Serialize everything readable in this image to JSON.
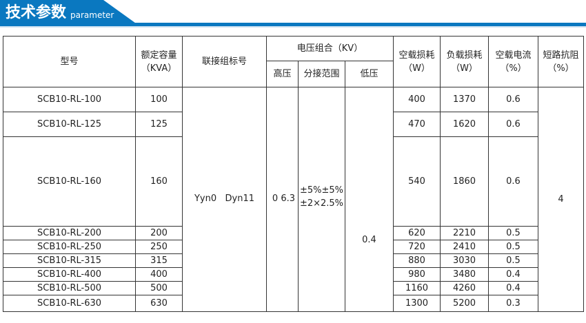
{
  "header": {
    "title": "技术参数",
    "subtitle": "parameter",
    "accent": "#0a78c0"
  },
  "table": {
    "headers": {
      "model": "型号",
      "capacity": "额定容量",
      "capacity_unit": "（KVA）",
      "connection": "联接组标号",
      "voltage": "电压组合（KV）",
      "hv": "高压",
      "tap": "分接范围",
      "lv": "低压",
      "noload_loss": "空载损耗",
      "noload_loss_unit": "（W）",
      "load_loss": "负载损耗",
      "load_loss_unit": "（W）",
      "noload_current": "空载电流",
      "noload_current_unit": "（%）",
      "impedance": "短路抗阻",
      "impedance_unit": "（%）"
    },
    "shared": {
      "connection": "Yyn0   Dyn11",
      "hv": "0  6.3",
      "tap1": "±5%±5%",
      "tap2": "±2×2.5%",
      "lv": "0.4",
      "impedance": "4"
    },
    "rows": [
      {
        "model": "SCB10-RL-100",
        "capacity": "100",
        "noload_loss": "400",
        "load_loss": "1370",
        "current": "0.6"
      },
      {
        "model": "SCB10-RL-125",
        "capacity": "125",
        "noload_loss": "470",
        "load_loss": "1620",
        "current": "0.6"
      },
      {
        "model": "SCB10-RL-160",
        "capacity": "160",
        "noload_loss": "540",
        "load_loss": "1860",
        "current": "0.6"
      },
      {
        "model": "SCB10-RL-200",
        "capacity": "200",
        "noload_loss": "620",
        "load_loss": "2210",
        "current": "0.5"
      },
      {
        "model": "SCB10-RL-250",
        "capacity": "250",
        "noload_loss": "720",
        "load_loss": "2410",
        "current": "0.5"
      },
      {
        "model": "SCB10-RL-315",
        "capacity": "315",
        "noload_loss": "880",
        "load_loss": "3030",
        "current": "0.5"
      },
      {
        "model": "SCB10-RL-400",
        "capacity": "400",
        "noload_loss": "980",
        "load_loss": "3480",
        "current": "0.4"
      },
      {
        "model": "SCB10-RL-500",
        "capacity": "500",
        "noload_loss": "1160",
        "load_loss": "4260",
        "current": "0.4"
      },
      {
        "model": "SCB10-RL-630",
        "capacity": "630",
        "noload_loss": "1300",
        "load_loss": "5200",
        "current": "0.3"
      }
    ]
  }
}
